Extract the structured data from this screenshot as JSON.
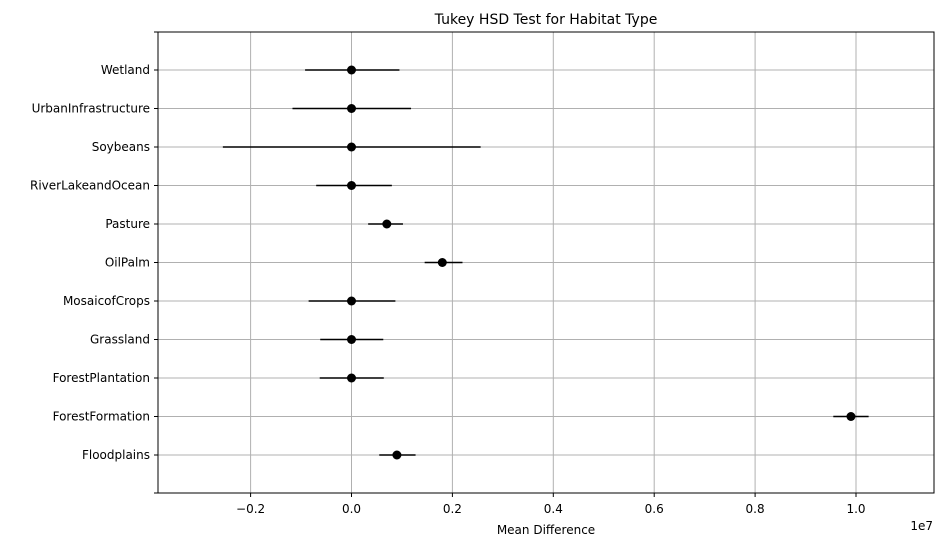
{
  "chart_data": {
    "type": "scatter",
    "title": "Tukey HSD Test for Habitat Type",
    "xlabel": "Mean Difference",
    "ylabel": "",
    "x_offset_label": "1e7",
    "xlim": [
      -3.8,
      11.3
    ],
    "x_tick_values": [
      -0.2,
      0.0,
      0.2,
      0.4,
      0.6,
      0.8,
      1.0
    ],
    "x_tick_labels": [
      "−0.2",
      "0.0",
      "0.2",
      "0.4",
      "0.6",
      "0.8",
      "1.0"
    ],
    "x_units": "x1e7",
    "grid": true,
    "categories": [
      "Floodplains",
      "ForestFormation",
      "ForestPlantation",
      "Grassland",
      "MosaicofCrops",
      "OilPalm",
      "Pasture",
      "RiverLakeandOcean",
      "Soybeans",
      "UrbanInfrastructure",
      "Wetland"
    ],
    "series": [
      {
        "marker_color": "#000000",
        "means": [
          0.09,
          0.99,
          0.0,
          0.0,
          0.0,
          0.18,
          0.07,
          0.0,
          0.0,
          0.0,
          0.0
        ],
        "lower": [
          0.055,
          0.955,
          -0.063,
          -0.062,
          -0.085,
          0.145,
          0.033,
          -0.07,
          -0.255,
          -0.117,
          -0.092
        ],
        "upper": [
          0.127,
          1.025,
          0.064,
          0.063,
          0.087,
          0.22,
          0.102,
          0.08,
          0.256,
          0.118,
          0.095
        ]
      }
    ]
  }
}
